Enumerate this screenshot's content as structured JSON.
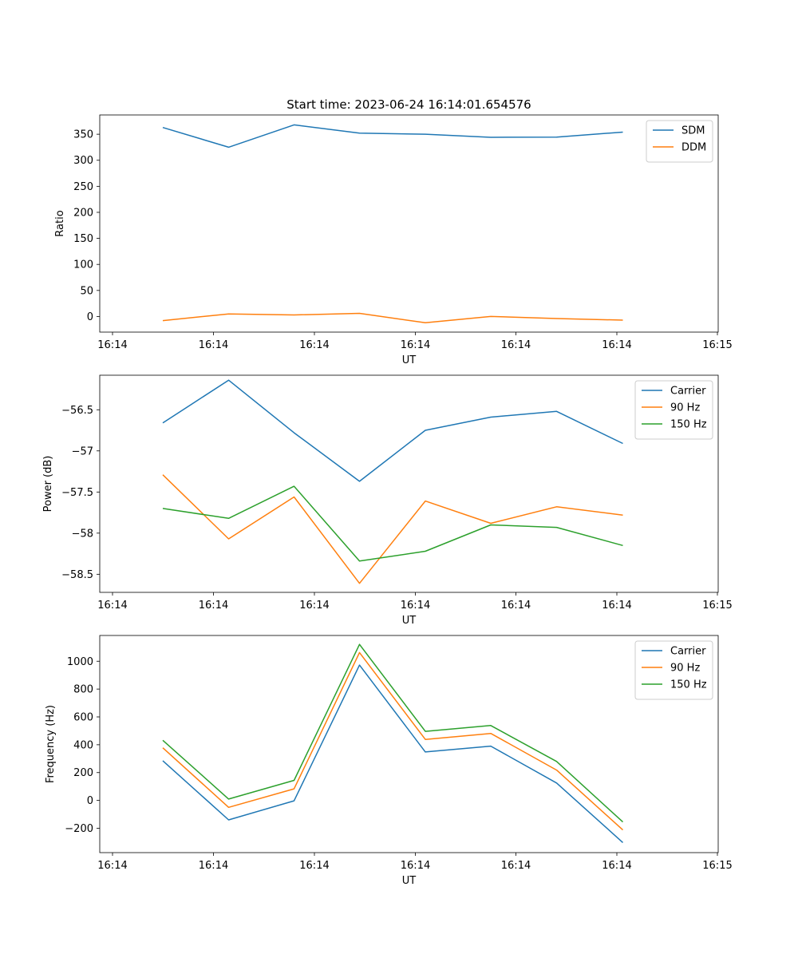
{
  "figure": {
    "title": "Start time: 2023-06-24 16:14:01.654576"
  },
  "chart_data": [
    {
      "type": "line",
      "title": "Start time: 2023-06-24 16:14:01.654576",
      "xlabel": "UT",
      "ylabel": "Ratio",
      "x_ticks": [
        "16:14",
        "16:14",
        "16:14",
        "16:14",
        "16:14",
        "16:14",
        "16:15"
      ],
      "yticks": [
        0,
        50,
        100,
        150,
        200,
        250,
        300,
        350
      ],
      "ylim": [
        -30,
        387
      ],
      "grid": false,
      "legend_position": "upper right",
      "series": [
        {
          "name": "SDM",
          "color": "#1f77b4",
          "values": [
            363,
            325,
            368,
            352,
            350,
            344,
            344.5,
            354
          ]
        },
        {
          "name": "DDM",
          "color": "#ff7f0e",
          "values": [
            -8,
            5,
            3,
            6,
            -12,
            0,
            -4,
            -7
          ]
        }
      ]
    },
    {
      "type": "line",
      "title": "",
      "xlabel": "UT",
      "ylabel": "Power (dB)",
      "x_ticks": [
        "16:14",
        "16:14",
        "16:14",
        "16:14",
        "16:14",
        "16:14",
        "16:15"
      ],
      "yticks": [
        -56.5,
        -57.0,
        -57.5,
        -58.0,
        -58.5
      ],
      "ylim": [
        -58.72,
        -56.08
      ],
      "grid": false,
      "legend_position": "upper right",
      "series": [
        {
          "name": "Carrier",
          "color": "#1f77b4",
          "values": [
            -56.66,
            -56.14,
            -56.78,
            -57.37,
            -56.75,
            -56.59,
            -56.52,
            -56.91
          ]
        },
        {
          "name": "90 Hz",
          "color": "#ff7f0e",
          "values": [
            -57.29,
            -58.07,
            -57.56,
            -58.61,
            -57.61,
            -57.88,
            -57.68,
            -57.78
          ]
        },
        {
          "name": "150 Hz",
          "color": "#2ca02c",
          "values": [
            -57.7,
            -57.82,
            -57.43,
            -58.34,
            -58.22,
            -57.9,
            -57.93,
            -58.15
          ]
        }
      ]
    },
    {
      "type": "line",
      "title": "",
      "xlabel": "UT",
      "ylabel": "Frequency (Hz)",
      "x_ticks": [
        "16:14",
        "16:14",
        "16:14",
        "16:14",
        "16:14",
        "16:14",
        "16:15"
      ],
      "yticks": [
        -200,
        0,
        200,
        400,
        600,
        800,
        1000
      ],
      "ylim": [
        -375,
        1185
      ],
      "grid": false,
      "legend_position": "upper right",
      "series": [
        {
          "name": "Carrier",
          "color": "#1f77b4",
          "values": [
            285,
            -140,
            -3,
            972,
            348,
            390,
            125,
            -303
          ]
        },
        {
          "name": "90 Hz",
          "color": "#ff7f0e",
          "values": [
            378,
            -50,
            83,
            1062,
            438,
            481,
            218,
            -212
          ]
        },
        {
          "name": "150 Hz",
          "color": "#2ca02c",
          "values": [
            432,
            10,
            144,
            1121,
            496,
            538,
            280,
            -155
          ]
        }
      ]
    }
  ]
}
